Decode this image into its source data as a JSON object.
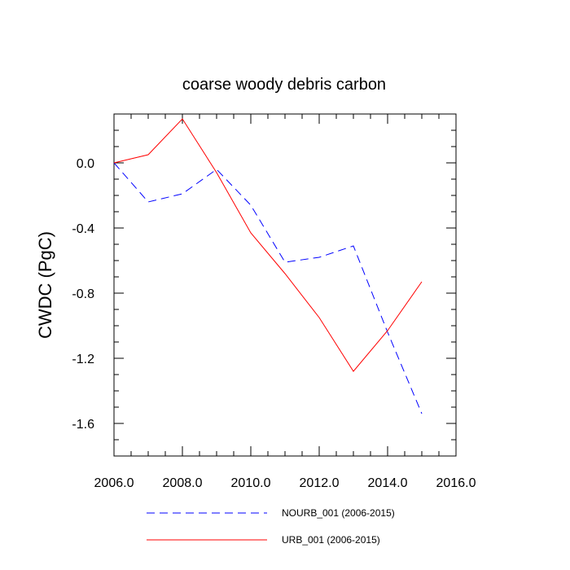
{
  "chart_data": {
    "type": "line",
    "title": "coarse woody debris carbon",
    "xlabel": "",
    "ylabel": "CWDC  (PgC)",
    "xlim": [
      2006,
      2016
    ],
    "ylim": [
      -1.8,
      0.3
    ],
    "xticks": [
      2006,
      2008,
      2010,
      2012,
      2014,
      2016
    ],
    "xtick_labels": [
      "2006.0",
      "2008.0",
      "2010.0",
      "2012.0",
      "2014.0",
      "2016.0"
    ],
    "yticks": [
      0.0,
      -0.4,
      -0.8,
      -1.2,
      -1.6
    ],
    "ytick_labels": [
      "0.0",
      "-0.4",
      "-0.8",
      "-1.2",
      "-1.6"
    ],
    "x": [
      2006,
      2007,
      2008,
      2009,
      2010,
      2011,
      2012,
      2013,
      2014,
      2015
    ],
    "series": [
      {
        "name": "NOURB_001 (2006-2015)",
        "color": "#0000ff",
        "style": "dashed",
        "values": [
          0.0,
          -0.24,
          -0.19,
          -0.04,
          -0.26,
          -0.61,
          -0.58,
          -0.51,
          -1.04,
          -1.54
        ]
      },
      {
        "name": "URB_001 (2006-2015)",
        "color": "#ff0000",
        "style": "solid",
        "values": [
          0.0,
          0.05,
          0.27,
          -0.06,
          -0.43,
          -0.68,
          -0.95,
          -1.28,
          -1.03,
          -0.73
        ]
      }
    ],
    "grid": false,
    "legend_position": "bottom"
  }
}
